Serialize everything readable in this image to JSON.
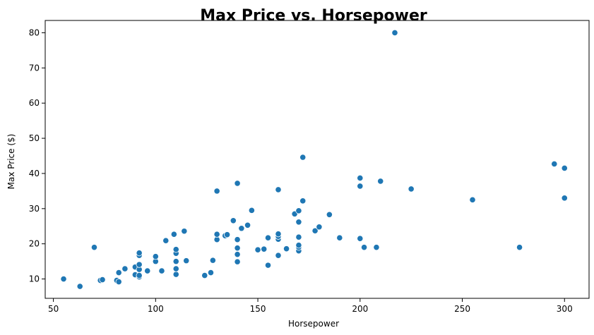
{
  "chart_data": {
    "type": "scatter",
    "title": "Max Price vs. Horsepower",
    "xlabel": "Horsepower",
    "ylabel": "Max Price ($)",
    "xlim": [
      46,
      312
    ],
    "ylim": [
      4.5,
      83.5
    ],
    "xticks": [
      50,
      100,
      150,
      200,
      250,
      300
    ],
    "yticks": [
      10,
      20,
      30,
      40,
      50,
      60,
      70,
      80
    ],
    "grid": false,
    "marker_color": "#1f77b4",
    "points": [
      {
        "x": 55,
        "y": 10.0
      },
      {
        "x": 63,
        "y": 7.9
      },
      {
        "x": 70,
        "y": 19.0
      },
      {
        "x": 73,
        "y": 9.6
      },
      {
        "x": 74,
        "y": 9.8
      },
      {
        "x": 81,
        "y": 9.4
      },
      {
        "x": 81,
        "y": 9.6
      },
      {
        "x": 82,
        "y": 9.2
      },
      {
        "x": 82,
        "y": 11.8
      },
      {
        "x": 85,
        "y": 12.9
      },
      {
        "x": 90,
        "y": 11.2
      },
      {
        "x": 90,
        "y": 13.4
      },
      {
        "x": 92,
        "y": 10.6
      },
      {
        "x": 92,
        "y": 11.0
      },
      {
        "x": 92,
        "y": 12.7
      },
      {
        "x": 92,
        "y": 14.1
      },
      {
        "x": 92,
        "y": 16.7
      },
      {
        "x": 92,
        "y": 17.4
      },
      {
        "x": 96,
        "y": 12.3
      },
      {
        "x": 100,
        "y": 15.0
      },
      {
        "x": 100,
        "y": 16.4
      },
      {
        "x": 103,
        "y": 12.3
      },
      {
        "x": 105,
        "y": 20.9
      },
      {
        "x": 109,
        "y": 22.7
      },
      {
        "x": 110,
        "y": 11.3
      },
      {
        "x": 110,
        "y": 12.9
      },
      {
        "x": 110,
        "y": 15.0
      },
      {
        "x": 110,
        "y": 17.3
      },
      {
        "x": 110,
        "y": 18.4
      },
      {
        "x": 114,
        "y": 23.6
      },
      {
        "x": 115,
        "y": 15.2
      },
      {
        "x": 124,
        "y": 11.0
      },
      {
        "x": 127,
        "y": 11.8
      },
      {
        "x": 128,
        "y": 15.3
      },
      {
        "x": 130,
        "y": 21.2
      },
      {
        "x": 130,
        "y": 22.7
      },
      {
        "x": 130,
        "y": 35.0
      },
      {
        "x": 134,
        "y": 22.3
      },
      {
        "x": 135,
        "y": 22.6
      },
      {
        "x": 138,
        "y": 26.6
      },
      {
        "x": 140,
        "y": 14.9
      },
      {
        "x": 140,
        "y": 17.0
      },
      {
        "x": 140,
        "y": 18.8
      },
      {
        "x": 140,
        "y": 21.2
      },
      {
        "x": 140,
        "y": 37.2
      },
      {
        "x": 142,
        "y": 24.4
      },
      {
        "x": 145,
        "y": 25.3
      },
      {
        "x": 147,
        "y": 29.5
      },
      {
        "x": 150,
        "y": 18.3
      },
      {
        "x": 153,
        "y": 18.5
      },
      {
        "x": 155,
        "y": 13.9
      },
      {
        "x": 155,
        "y": 21.7
      },
      {
        "x": 160,
        "y": 16.7
      },
      {
        "x": 160,
        "y": 21.3
      },
      {
        "x": 160,
        "y": 22.1
      },
      {
        "x": 160,
        "y": 22.8
      },
      {
        "x": 160,
        "y": 35.4
      },
      {
        "x": 164,
        "y": 18.6
      },
      {
        "x": 168,
        "y": 28.5
      },
      {
        "x": 170,
        "y": 18.0
      },
      {
        "x": 170,
        "y": 19.0
      },
      {
        "x": 170,
        "y": 19.6
      },
      {
        "x": 170,
        "y": 21.9
      },
      {
        "x": 170,
        "y": 26.2
      },
      {
        "x": 170,
        "y": 29.4
      },
      {
        "x": 172,
        "y": 32.2
      },
      {
        "x": 172,
        "y": 44.6
      },
      {
        "x": 178,
        "y": 23.7
      },
      {
        "x": 180,
        "y": 24.8
      },
      {
        "x": 185,
        "y": 28.3
      },
      {
        "x": 190,
        "y": 21.7
      },
      {
        "x": 200,
        "y": 21.5
      },
      {
        "x": 200,
        "y": 36.4
      },
      {
        "x": 200,
        "y": 38.7
      },
      {
        "x": 202,
        "y": 19.0
      },
      {
        "x": 208,
        "y": 19.0
      },
      {
        "x": 210,
        "y": 37.8
      },
      {
        "x": 217,
        "y": 80.0
      },
      {
        "x": 225,
        "y": 35.6
      },
      {
        "x": 255,
        "y": 32.5
      },
      {
        "x": 278,
        "y": 19.0
      },
      {
        "x": 295,
        "y": 42.7
      },
      {
        "x": 300,
        "y": 41.5
      },
      {
        "x": 300,
        "y": 33.0
      }
    ]
  }
}
